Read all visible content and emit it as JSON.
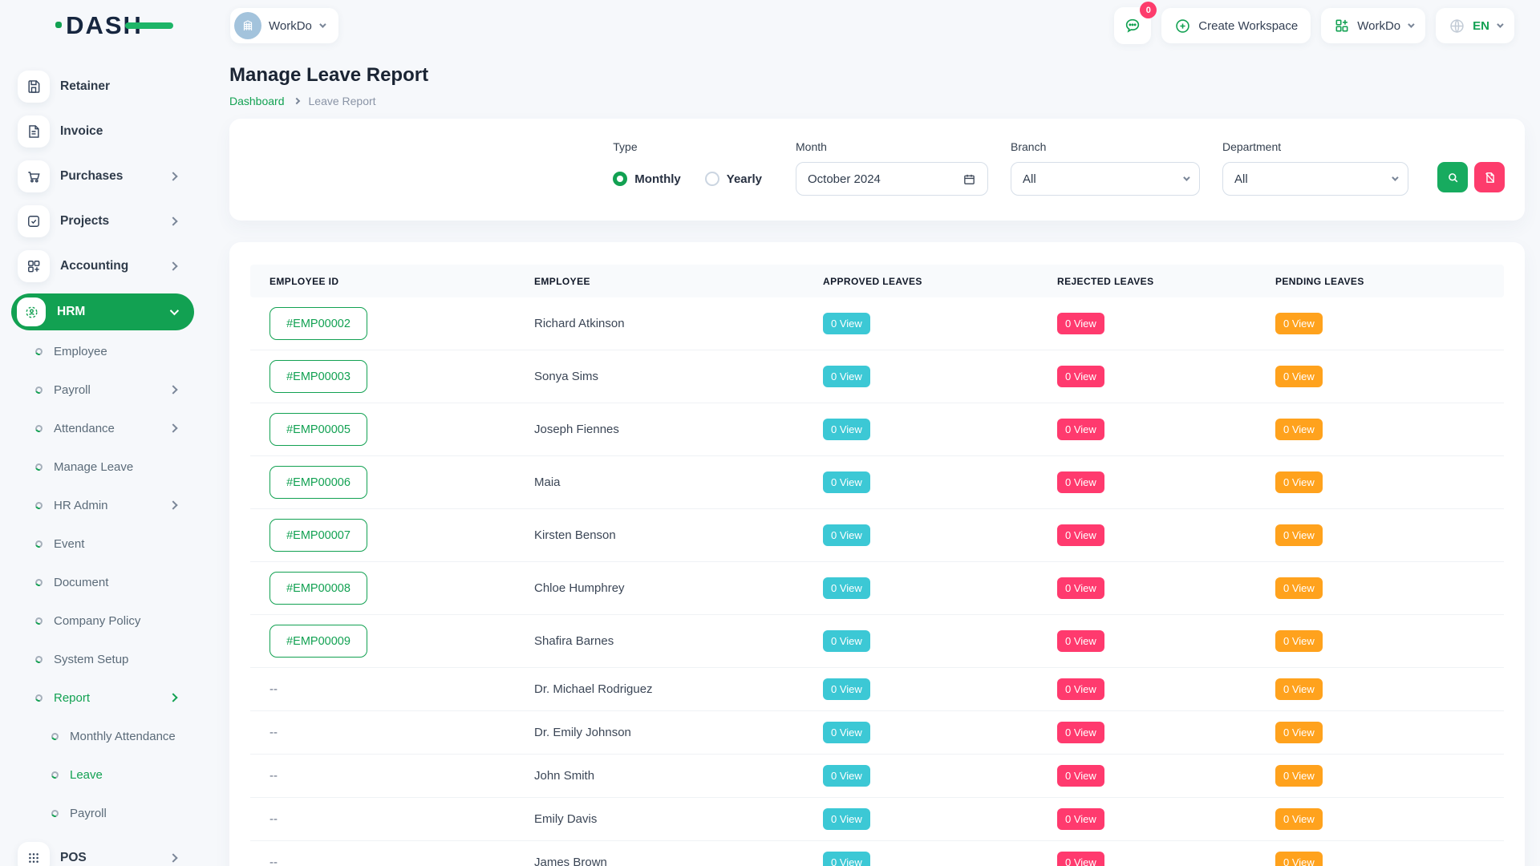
{
  "brand": {
    "logo_text": "DASH"
  },
  "topbar": {
    "workspace_switcher": {
      "label": "WorkDo"
    },
    "messages": {
      "badge": "0"
    },
    "create_workspace_label": "Create Workspace",
    "app_menu_label": "WorkDo",
    "language": {
      "code": "EN"
    }
  },
  "sidebar": {
    "top_items": [
      {
        "label": "Retainer",
        "icon": "save-icon"
      },
      {
        "label": "Invoice",
        "icon": "invoice-icon"
      },
      {
        "label": "Purchases",
        "icon": "cart-icon"
      },
      {
        "label": "Projects",
        "icon": "project-icon"
      },
      {
        "label": "Accounting",
        "icon": "accounting-icon"
      }
    ],
    "hrm": {
      "label": "HRM",
      "icon": "hrm-icon",
      "expanded": true
    },
    "hrm_children": [
      {
        "label": "Employee"
      },
      {
        "label": "Payroll"
      },
      {
        "label": "Attendance"
      },
      {
        "label": "Manage Leave"
      },
      {
        "label": "HR Admin"
      },
      {
        "label": "Event"
      },
      {
        "label": "Document"
      },
      {
        "label": "Company Policy"
      },
      {
        "label": "System Setup"
      },
      {
        "label": "Report",
        "active": true
      }
    ],
    "report_children": [
      {
        "label": "Monthly Attendance"
      },
      {
        "label": "Leave",
        "active": true
      },
      {
        "label": "Payroll"
      }
    ],
    "bottom_items": [
      {
        "label": "POS",
        "icon": "pos-icon"
      }
    ]
  },
  "page": {
    "title": "Manage Leave Report",
    "breadcrumb": {
      "home": "Dashboard",
      "current": "Leave Report"
    }
  },
  "filters": {
    "type": {
      "label": "Type",
      "options": [
        "Monthly",
        "Yearly"
      ],
      "selected": "Monthly"
    },
    "month": {
      "label": "Month",
      "value": "October 2024"
    },
    "branch": {
      "label": "Branch",
      "value": "All"
    },
    "department": {
      "label": "Department",
      "value": "All"
    }
  },
  "table": {
    "headers": [
      "EMPLOYEE ID",
      "EMPLOYEE",
      "APPROVED LEAVES",
      "REJECTED LEAVES",
      "PENDING LEAVES"
    ],
    "rows": [
      {
        "id": "#EMP00002",
        "name": "Richard Atkinson",
        "approved": "0 View",
        "rejected": "0 View",
        "pending": "0 View"
      },
      {
        "id": "#EMP00003",
        "name": "Sonya Sims",
        "approved": "0 View",
        "rejected": "0 View",
        "pending": "0 View"
      },
      {
        "id": "#EMP00005",
        "name": "Joseph Fiennes",
        "approved": "0 View",
        "rejected": "0 View",
        "pending": "0 View"
      },
      {
        "id": "#EMP00006",
        "name": "Maia",
        "approved": "0 View",
        "rejected": "0 View",
        "pending": "0 View"
      },
      {
        "id": "#EMP00007",
        "name": "Kirsten Benson",
        "approved": "0 View",
        "rejected": "0 View",
        "pending": "0 View"
      },
      {
        "id": "#EMP00008",
        "name": "Chloe Humphrey",
        "approved": "0 View",
        "rejected": "0 View",
        "pending": "0 View"
      },
      {
        "id": "#EMP00009",
        "name": "Shafira Barnes",
        "approved": "0 View",
        "rejected": "0 View",
        "pending": "0 View"
      },
      {
        "id": "--",
        "name": "Dr. Michael Rodriguez",
        "approved": "0 View",
        "rejected": "0 View",
        "pending": "0 View"
      },
      {
        "id": "--",
        "name": "Dr. Emily Johnson",
        "approved": "0 View",
        "rejected": "0 View",
        "pending": "0 View"
      },
      {
        "id": "--",
        "name": "John Smith",
        "approved": "0 View",
        "rejected": "0 View",
        "pending": "0 View"
      },
      {
        "id": "--",
        "name": "Emily Davis",
        "approved": "0 View",
        "rejected": "0 View",
        "pending": "0 View"
      },
      {
        "id": "--",
        "name": "James Brown",
        "approved": "0 View",
        "rejected": "0 View",
        "pending": "0 View"
      }
    ]
  },
  "colors": {
    "primary_green": "#12a152",
    "badge_approved": "#3cc8d5",
    "badge_rejected": "#ff3a6e",
    "badge_pending": "#ffa21d",
    "reset_pink": "#fd3c6c",
    "logo_navy": "#16263f",
    "workspace_avatar_blue": "#a3c3dc"
  }
}
